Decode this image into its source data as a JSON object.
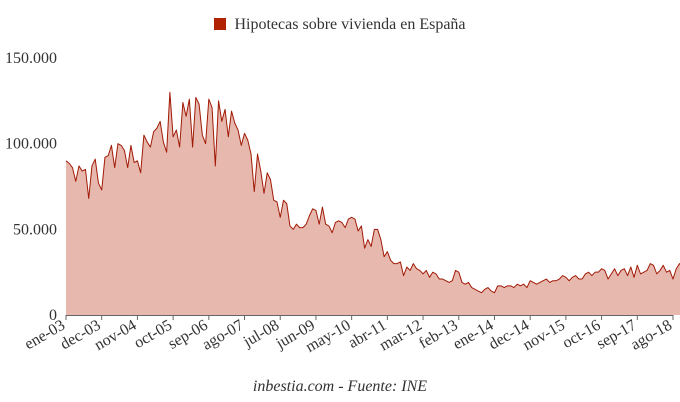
{
  "legend": {
    "label": "Hipotecas sobre vivienda en España"
  },
  "footer": {
    "source": "inbestia.com - Fuente: INE"
  },
  "colors": {
    "line": "#a11a06",
    "fill": "#e6b8ae",
    "swatch": "#b22200",
    "axis": "#666666",
    "text": "#333333"
  },
  "chart_data": {
    "type": "area",
    "title": "",
    "xlabel": "",
    "ylabel": "",
    "legend_position": "top-center",
    "grid": false,
    "ylim": [
      0,
      150000
    ],
    "yticks": [
      "0",
      "50.000",
      "100.000",
      "150.000"
    ],
    "xticks": [
      "ene-03",
      "dec-03",
      "nov-04",
      "oct-05",
      "sep-06",
      "ago-07",
      "jul-08",
      "jun-09",
      "may-10",
      "abr-11",
      "mar-12",
      "feb-13",
      "ene-14",
      "dec-14",
      "nov-15",
      "oct-16",
      "sep-17",
      "ago-18"
    ],
    "series": [
      {
        "name": "Hipotecas sobre vivienda en España",
        "x_start": "ene-03",
        "frequency": "monthly",
        "values": [
          90000,
          88500,
          86000,
          78000,
          87000,
          84000,
          85000,
          68000,
          87000,
          91000,
          77000,
          73000,
          92000,
          93000,
          99000,
          86000,
          100000,
          99000,
          96000,
          86000,
          99000,
          89000,
          90000,
          83000,
          105000,
          101000,
          98000,
          107000,
          109000,
          113000,
          101000,
          95000,
          130000,
          104000,
          108000,
          98000,
          124000,
          116000,
          126000,
          98000,
          127000,
          123000,
          105000,
          100000,
          126000,
          121000,
          87000,
          125000,
          113000,
          120000,
          104000,
          119000,
          112000,
          108000,
          99000,
          106000,
          102000,
          94000,
          72000,
          94000,
          84000,
          71000,
          83000,
          79000,
          67000,
          66000,
          57000,
          67000,
          65000,
          52000,
          50000,
          53000,
          51000,
          51000,
          53000,
          58000,
          62000,
          61000,
          53000,
          63000,
          53000,
          52000,
          48000,
          54000,
          55000,
          54000,
          51000,
          56000,
          57000,
          56000,
          49000,
          52000,
          39000,
          44000,
          40000,
          50000,
          50000,
          44000,
          34000,
          37000,
          32000,
          30000,
          30000,
          31000,
          23000,
          28000,
          26000,
          30000,
          27000,
          26000,
          24000,
          26000,
          22000,
          25000,
          24000,
          21000,
          21000,
          20000,
          19000,
          20000,
          26000,
          25000,
          19000,
          18000,
          19000,
          16000,
          15000,
          14000,
          13000,
          15000,
          16000,
          14000,
          13000,
          17000,
          17000,
          16000,
          17000,
          17000,
          16000,
          18000,
          17000,
          18000,
          16000,
          20000,
          19000,
          18000,
          19000,
          20000,
          21000,
          19000,
          20000,
          20000,
          21000,
          23000,
          22000,
          20000,
          22000,
          23000,
          21000,
          21000,
          24000,
          25000,
          23000,
          25000,
          25000,
          27000,
          26000,
          21000,
          24000,
          27000,
          23000,
          26000,
          27000,
          23000,
          28000,
          22000,
          29000,
          24000,
          25000,
          26000,
          30000,
          29000,
          24000,
          26000,
          29000,
          25000,
          26000,
          21000,
          27000,
          30000,
          28000,
          29000,
          31000,
          29000,
          30000,
          29000,
          30000,
          33000,
          31000
        ]
      }
    ]
  }
}
